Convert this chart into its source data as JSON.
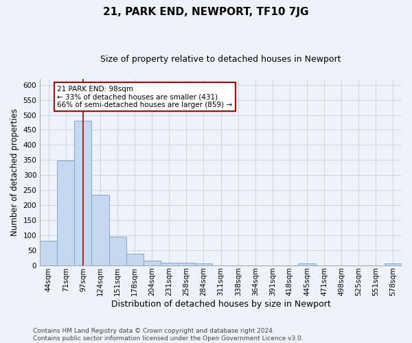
{
  "title": "21, PARK END, NEWPORT, TF10 7JG",
  "subtitle": "Size of property relative to detached houses in Newport",
  "xlabel": "Distribution of detached houses by size in Newport",
  "ylabel": "Number of detached properties",
  "categories": [
    "44sqm",
    "71sqm",
    "97sqm",
    "124sqm",
    "151sqm",
    "178sqm",
    "204sqm",
    "231sqm",
    "258sqm",
    "284sqm",
    "311sqm",
    "338sqm",
    "364sqm",
    "391sqm",
    "418sqm",
    "445sqm",
    "471sqm",
    "498sqm",
    "525sqm",
    "551sqm",
    "578sqm"
  ],
  "values": [
    82,
    349,
    480,
    233,
    95,
    38,
    16,
    8,
    8,
    5,
    0,
    0,
    0,
    0,
    0,
    5,
    0,
    0,
    0,
    0,
    5
  ],
  "bar_color": "#c5d8ef",
  "bar_edge_color": "#7aaacc",
  "property_line_x": 2,
  "property_line_color": "#aa0000",
  "annotation_line1": "21 PARK END: 98sqm",
  "annotation_line2": "← 33% of detached houses are smaller (431)",
  "annotation_line3": "66% of semi-detached houses are larger (859) →",
  "annotation_box_color": "#ffffff",
  "annotation_box_edge_color": "#cc0000",
  "footer_line1": "Contains HM Land Registry data © Crown copyright and database right 2024.",
  "footer_line2": "Contains public sector information licensed under the Open Government Licence v3.0.",
  "ylim": [
    0,
    620
  ],
  "yticks": [
    0,
    50,
    100,
    150,
    200,
    250,
    300,
    350,
    400,
    450,
    500,
    550,
    600
  ],
  "background_color": "#eef2fa",
  "grid_color": "#c8cfe0",
  "title_fontsize": 11,
  "subtitle_fontsize": 9,
  "xlabel_fontsize": 9,
  "ylabel_fontsize": 8.5,
  "tick_fontsize": 7.5,
  "footer_fontsize": 6.5
}
